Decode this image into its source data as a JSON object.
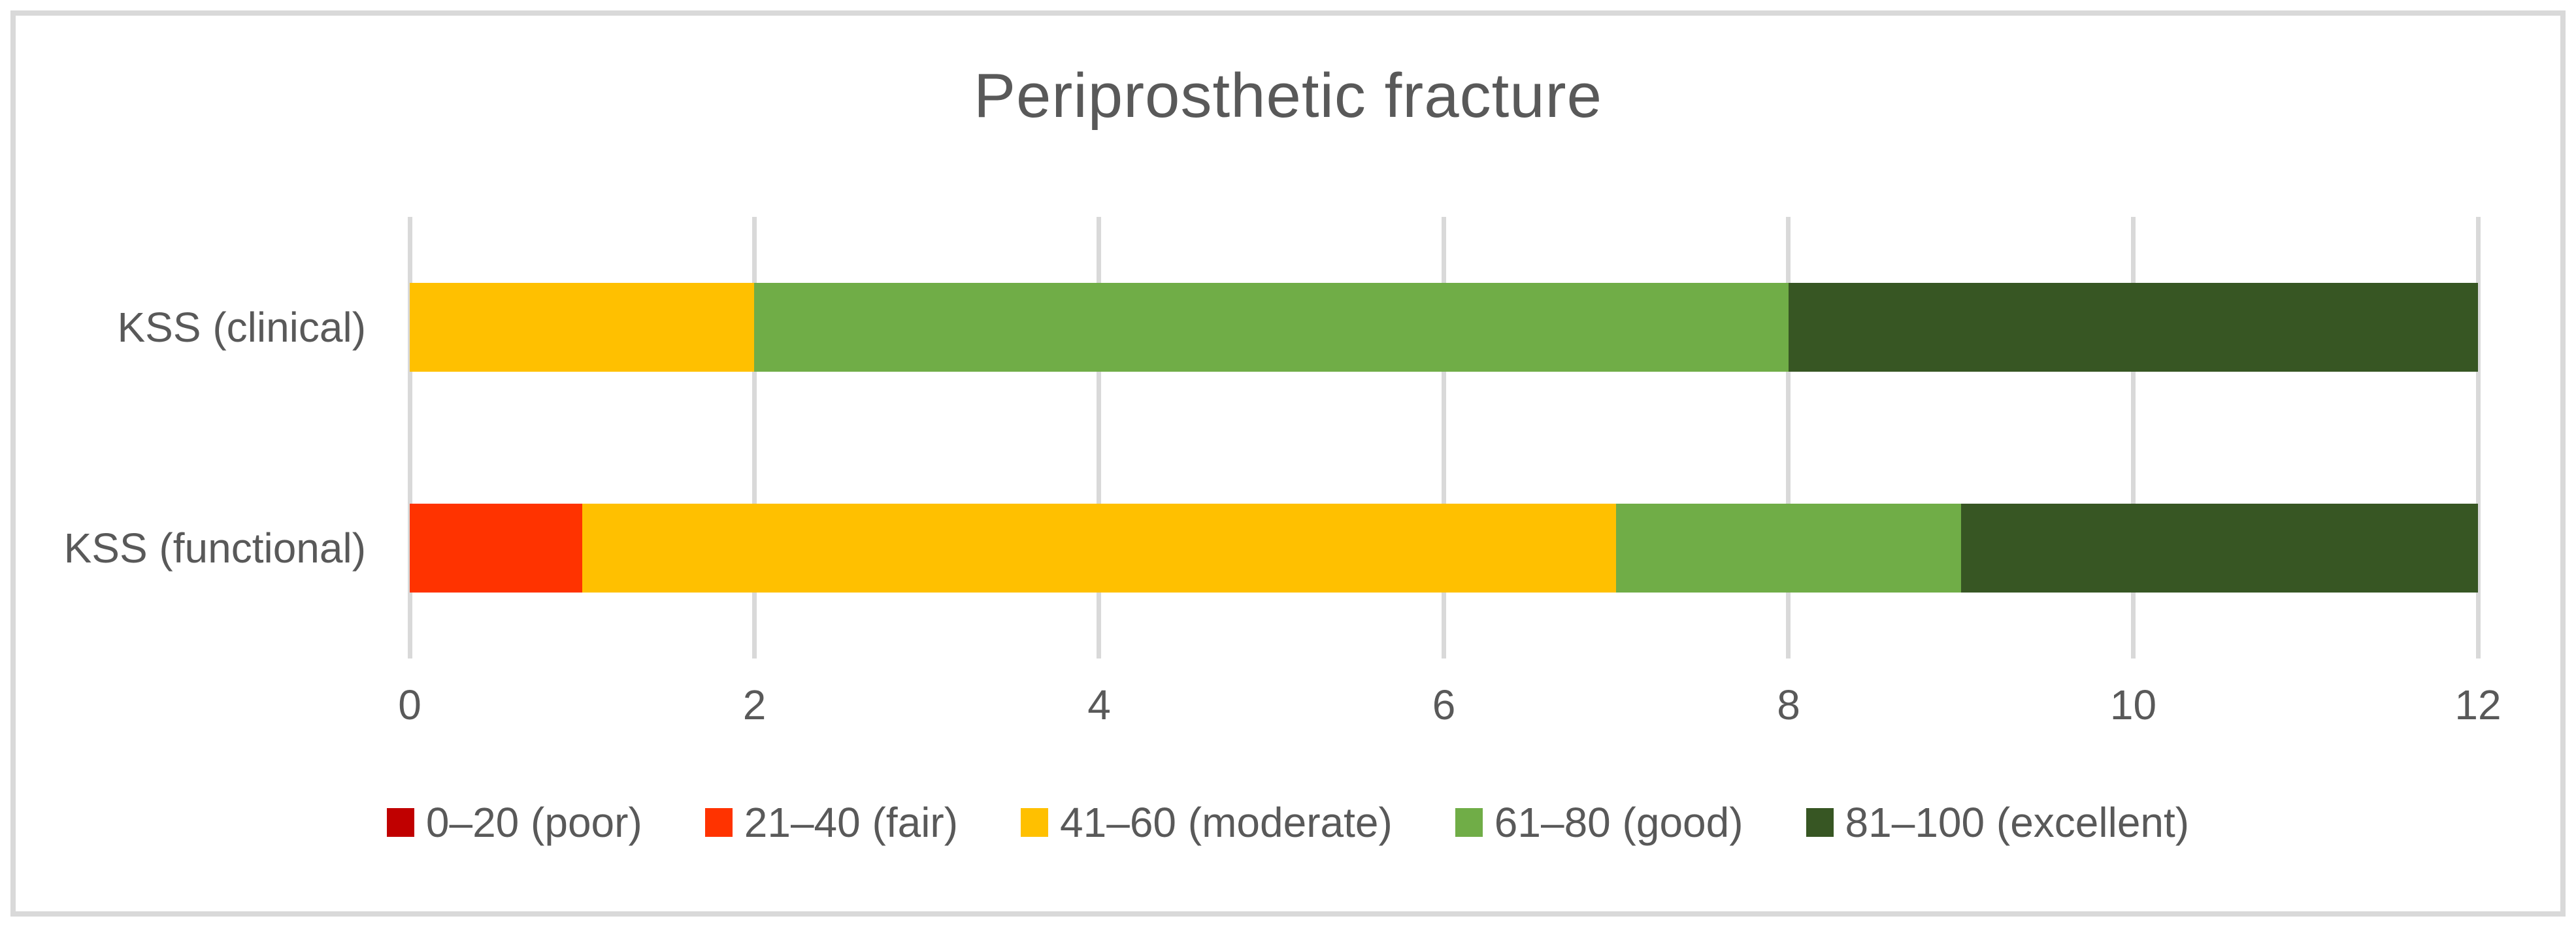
{
  "chart_data": {
    "type": "bar",
    "stacked": true,
    "orientation": "horizontal",
    "title": "Periprosthetic fracture",
    "categories": [
      "KSS (clinical)",
      "KSS (functional)"
    ],
    "series": [
      {
        "name": "0–20 (poor)",
        "color": "#C00000",
        "values": [
          0,
          0
        ]
      },
      {
        "name": "21–40 (fair)",
        "color": "#FF3300",
        "values": [
          0,
          1
        ]
      },
      {
        "name": "41–60 (moderate)",
        "color": "#FFC000",
        "values": [
          2,
          6
        ]
      },
      {
        "name": "61–80 (good)",
        "color": "#70AD47",
        "values": [
          6,
          2
        ]
      },
      {
        "name": "81–100 (excellent)",
        "color": "#375623",
        "values": [
          4,
          3
        ]
      }
    ],
    "x_axis": {
      "min": 0,
      "max": 12,
      "tick_step": 2,
      "ticks": [
        0,
        2,
        4,
        6,
        8,
        10,
        12
      ]
    },
    "grid": "vertical",
    "grid_color": "#D9D9D9",
    "text_color": "#595959",
    "frame_color": "#D9D9D9",
    "legend_position": "bottom"
  }
}
